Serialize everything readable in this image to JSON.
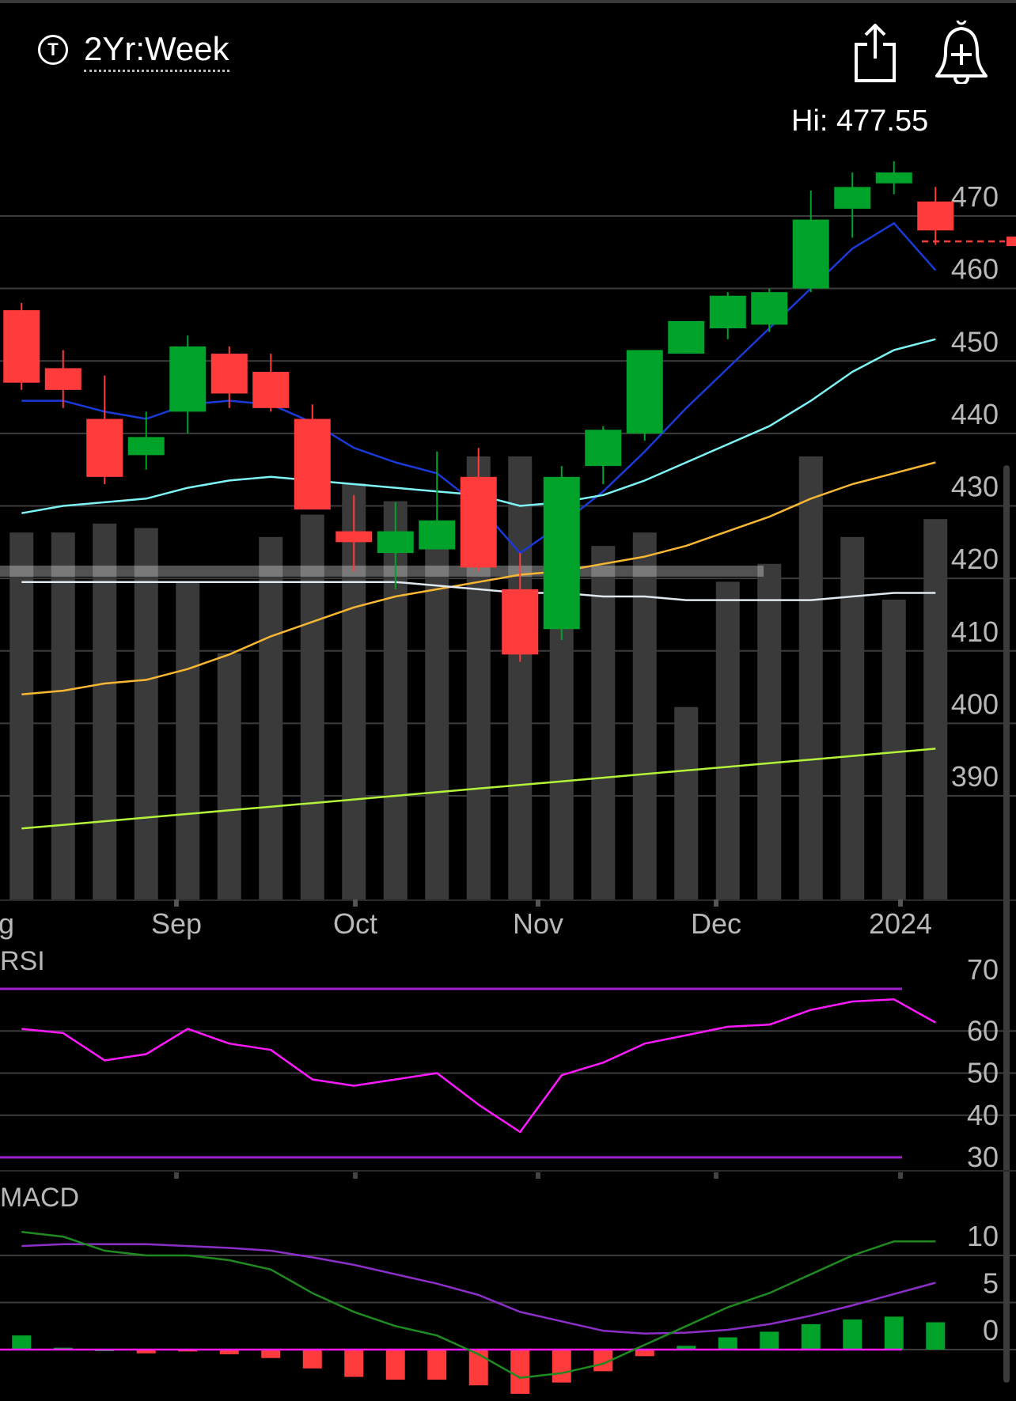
{
  "header": {
    "symbol_icon": "T",
    "range_label": "2Yr:Week",
    "share_icon": "share-icon",
    "alert_icon": "add-alert-bell-icon",
    "hi_label": "Hi: 477.55"
  },
  "colors": {
    "up": "#00a32a",
    "down": "#ff3b3b",
    "volume": "#3a3a3a",
    "ma_blue": "#1a3ad8",
    "ma_cyan": "#7ef4f4",
    "ma_orange": "#f7b733",
    "ma_white": "#dde8f0",
    "ma_lime": "#b5f23a",
    "rsi_line": "#ff19ff",
    "rsi_bounds": "#a020d0",
    "macd_line": "#1f8a1f",
    "signal_line": "#8c2fc8",
    "grid": "#3c3c3c"
  },
  "chart_data": [
    {
      "type": "candlestick",
      "panel": "price",
      "x_labels": [
        "g",
        "Sep",
        "Oct",
        "Nov",
        "Dec",
        "2024"
      ],
      "y_ticks": [
        470,
        460,
        450,
        440,
        430,
        420,
        410,
        400,
        390
      ],
      "ylim": [
        380,
        480
      ],
      "hi": 477.55,
      "current_price": 466.5,
      "candles": [
        {
          "open": 457,
          "high": 458,
          "low": 446,
          "close": 447
        },
        {
          "open": 449,
          "high": 451.5,
          "low": 443.5,
          "close": 446
        },
        {
          "open": 442,
          "high": 448,
          "low": 433,
          "close": 434
        },
        {
          "open": 437,
          "high": 443,
          "low": 435,
          "close": 439.5
        },
        {
          "open": 443,
          "high": 453.5,
          "low": 440,
          "close": 452
        },
        {
          "open": 451,
          "high": 452,
          "low": 443.5,
          "close": 445.5
        },
        {
          "open": 448.5,
          "high": 451,
          "low": 443,
          "close": 443.5
        },
        {
          "open": 442,
          "high": 444,
          "low": 430,
          "close": 429.5
        },
        {
          "open": 426.5,
          "high": 431.5,
          "low": 421,
          "close": 425
        },
        {
          "open": 423.5,
          "high": 430.5,
          "low": 418.5,
          "close": 426.5
        },
        {
          "open": 424,
          "high": 437.5,
          "low": 424,
          "close": 428
        },
        {
          "open": 434,
          "high": 438,
          "low": 421,
          "close": 421.5
        },
        {
          "open": 418.5,
          "high": 423.5,
          "low": 408.5,
          "close": 409.5
        },
        {
          "open": 413,
          "high": 435.5,
          "low": 411.5,
          "close": 434
        },
        {
          "open": 435.5,
          "high": 441,
          "low": 433,
          "close": 440.5
        },
        {
          "open": 440,
          "high": 451,
          "low": 439,
          "close": 451.5
        },
        {
          "open": 451,
          "high": 455,
          "low": 451,
          "close": 455.5
        },
        {
          "open": 454.5,
          "high": 459.5,
          "low": 453,
          "close": 459
        },
        {
          "open": 455,
          "high": 460,
          "low": 454,
          "close": 459.5
        },
        {
          "open": 460,
          "high": 473.5,
          "low": 459.5,
          "close": 469.5
        },
        {
          "open": 471,
          "high": 476,
          "low": 467,
          "close": 474
        },
        {
          "open": 474.5,
          "high": 477.55,
          "low": 473,
          "close": 476
        },
        {
          "open": 472,
          "high": 474,
          "low": 466,
          "close": 468
        }
      ],
      "volume_relative": [
        0.82,
        0.82,
        0.84,
        0.83,
        0.71,
        0.55,
        0.81,
        0.86,
        0.93,
        0.89,
        0.82,
        0.99,
        0.99,
        0.85,
        0.79,
        0.82,
        0.43,
        0.71,
        0.75,
        0.99,
        0.81,
        0.67,
        0.85
      ],
      "volume_band": {
        "value": 421,
        "label": ""
      },
      "moving_averages": [
        {
          "color_key": "ma_blue",
          "values": [
            444.5,
            444.5,
            443,
            442,
            444,
            444.5,
            444,
            441.5,
            438,
            436,
            434.5,
            430,
            423.5,
            427.5,
            432,
            437.5,
            443.5,
            449,
            454.5,
            460,
            465.5,
            469,
            462.5
          ]
        },
        {
          "color_key": "ma_cyan",
          "values": [
            429,
            430,
            430.5,
            431,
            432.5,
            433.5,
            434,
            433.5,
            433,
            432.5,
            432,
            431.5,
            430,
            430.5,
            431.5,
            433.5,
            436,
            438.5,
            441,
            444.5,
            448.5,
            451.5,
            453
          ]
        },
        {
          "color_key": "ma_orange",
          "values": [
            404,
            404.5,
            405.5,
            406,
            407.5,
            409.5,
            412,
            414,
            416,
            417.5,
            418.5,
            419.5,
            420.5,
            421,
            422,
            423,
            424.5,
            426.5,
            428.5,
            431,
            433,
            434.5,
            436
          ]
        },
        {
          "color_key": "ma_white",
          "values": [
            419.5,
            419.5,
            419.5,
            419.5,
            419.5,
            419.5,
            419.5,
            419.5,
            419.5,
            419.5,
            419,
            418.5,
            418,
            418,
            417.5,
            417.5,
            417,
            417,
            417,
            417,
            417.5,
            418,
            418
          ]
        },
        {
          "color_key": "ma_lime",
          "values": [
            385.5,
            386,
            386.5,
            387,
            387.5,
            388,
            388.5,
            389,
            389.5,
            390,
            390.5,
            391,
            391.5,
            392,
            392.5,
            393,
            393.5,
            394,
            394.5,
            395,
            395.5,
            396,
            396.5
          ]
        }
      ]
    },
    {
      "type": "line",
      "panel": "RSI",
      "label": "RSI",
      "y_ticks": [
        70,
        60,
        50,
        40,
        30
      ],
      "ylim": [
        27,
        73
      ],
      "bounds": [
        70,
        30
      ],
      "values": [
        60.5,
        59.5,
        53,
        54.5,
        60.5,
        57,
        55.5,
        48.5,
        47,
        48.5,
        50,
        42.5,
        36,
        49.5,
        52.5,
        57,
        59,
        61,
        61.5,
        65,
        67,
        67.5,
        62
      ]
    },
    {
      "type": "line",
      "panel": "MACD",
      "label": "MACD",
      "y_ticks": [
        10,
        5,
        0
      ],
      "ylim": [
        -5,
        14
      ],
      "macd": [
        12.5,
        12,
        10.5,
        10,
        10,
        9.5,
        8.5,
        6,
        4,
        2.5,
        1.5,
        -0.5,
        -3,
        -2.5,
        -1.5,
        0.5,
        2.5,
        4.5,
        6,
        8,
        10,
        11.5,
        11.5
      ],
      "signal": [
        11,
        11.2,
        11.2,
        11.2,
        11,
        10.8,
        10.5,
        9.8,
        9,
        8,
        7,
        5.8,
        4,
        3,
        2,
        1.7,
        1.8,
        2.1,
        2.7,
        3.6,
        4.7,
        5.9,
        7.1
      ],
      "histogram": [
        1.5,
        0.2,
        0,
        -0.4,
        -0.2,
        -0.5,
        -0.9,
        -2,
        -2.9,
        -3.2,
        -3.2,
        -3.8,
        -4.7,
        -3.5,
        -2.3,
        -0.7,
        0.4,
        1.3,
        1.9,
        2.7,
        3.2,
        3.5,
        2.9
      ]
    }
  ]
}
